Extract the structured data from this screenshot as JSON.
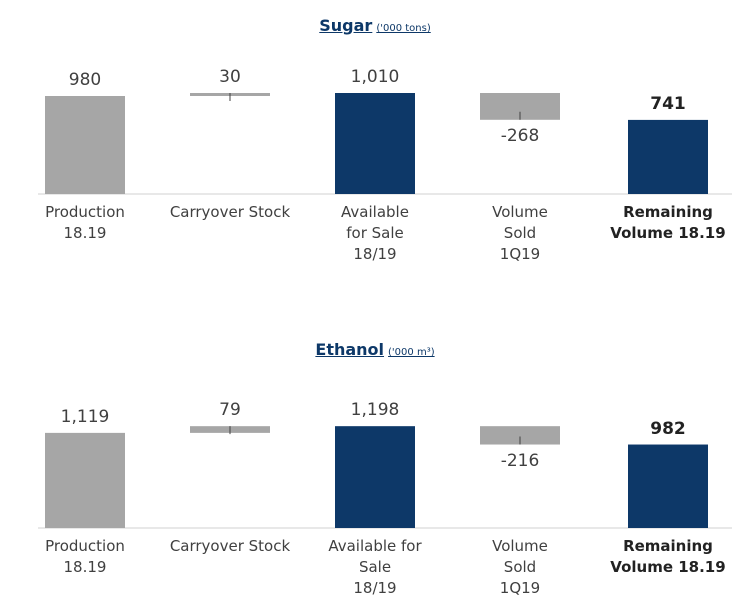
{
  "chart_data": [
    {
      "type": "waterfall",
      "title": "Sugar",
      "subtitle": "('000 tons)",
      "categories": [
        "Production\n18.19",
        "Carryover Stock",
        "Available\nfor Sale\n18/19",
        "Volume\nSold\n1Q19",
        "Remaining\nVolume 18.19"
      ],
      "values": [
        980,
        30,
        1010,
        -268,
        741
      ],
      "value_labels": [
        "980",
        "30",
        "1,010",
        "-268",
        "741"
      ],
      "kinds": [
        "total",
        "delta",
        "total",
        "delta",
        "total"
      ],
      "colors": [
        "#a6a6a6",
        "#a6a6a6",
        "#0d3868",
        "#a6a6a6",
        "#0d3868"
      ],
      "ylim": [
        0,
        1200
      ]
    },
    {
      "type": "waterfall",
      "title": "Ethanol",
      "subtitle": "('000 m³)",
      "categories": [
        "Production\n18.19",
        "Carryover Stock",
        "Available for\nSale\n18/19",
        "Volume\nSold\n1Q19",
        "Remaining\nVolume 18.19"
      ],
      "values": [
        1119,
        79,
        1198,
        -216,
        982
      ],
      "value_labels": [
        "1,119",
        "79",
        "1,198",
        "-216",
        "982"
      ],
      "kinds": [
        "total",
        "delta",
        "total",
        "delta",
        "total"
      ],
      "colors": [
        "#a6a6a6",
        "#a6a6a6",
        "#0d3868",
        "#a6a6a6",
        "#0d3868"
      ],
      "ylim": [
        0,
        1400
      ]
    }
  ]
}
